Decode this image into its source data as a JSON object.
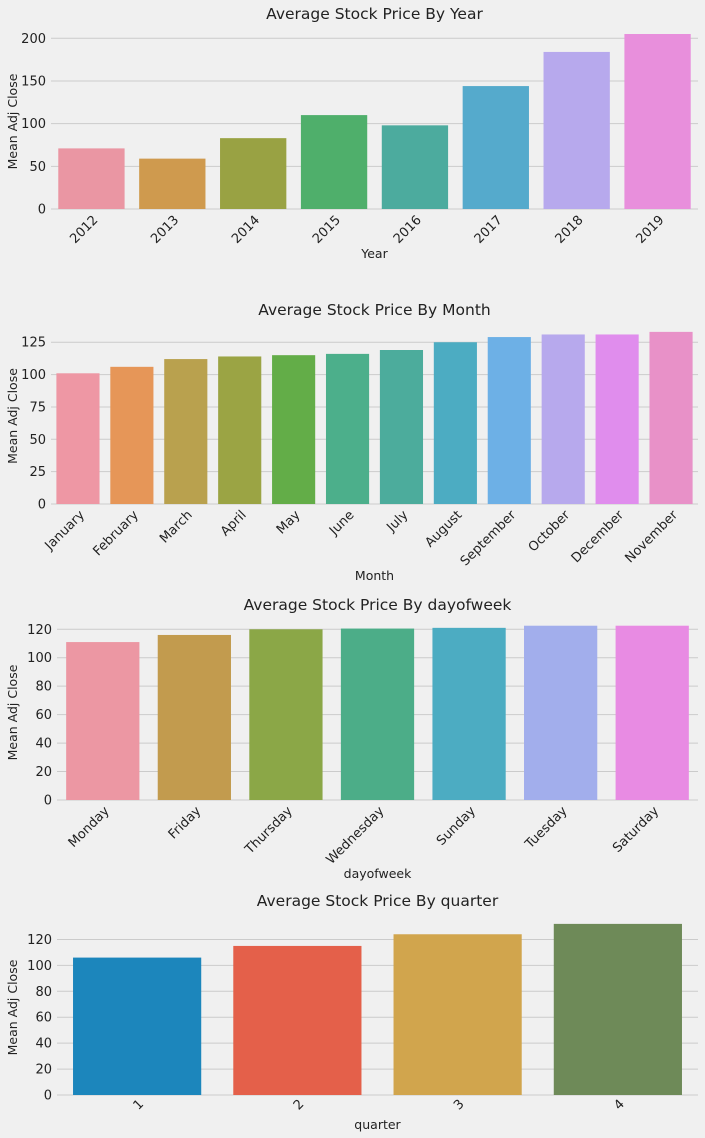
{
  "chart_data": [
    {
      "type": "bar",
      "title": "Average Stock Price By Year",
      "xlabel": "Year",
      "ylabel": "Mean Adj Close",
      "categories": [
        "2012",
        "2013",
        "2014",
        "2015",
        "2016",
        "2017",
        "2018",
        "2019"
      ],
      "values": [
        71,
        59,
        83,
        110,
        98,
        144,
        184,
        205
      ],
      "ylim": [
        0,
        205
      ],
      "yticks": [
        "0",
        "50",
        "100",
        "150",
        "200"
      ],
      "grid": true,
      "colors": [
        "#ea96a3",
        "#cf9a4e",
        "#99a243",
        "#4faf6b",
        "#4cab9e",
        "#55aacc",
        "#b7a9ed",
        "#e88fdc"
      ]
    },
    {
      "type": "bar",
      "title": "Average Stock Price By Month",
      "xlabel": "Month",
      "ylabel": "Mean Adj Close",
      "categories": [
        "January",
        "February",
        "March",
        "April",
        "May",
        "June",
        "July",
        "August",
        "September",
        "October",
        "December",
        "November"
      ],
      "values": [
        101,
        106,
        112,
        114,
        115,
        116,
        119,
        125,
        129,
        131,
        131,
        133
      ],
      "ylim": [
        0,
        136
      ],
      "yticks": [
        "0",
        "25",
        "50",
        "75",
        "100",
        "125"
      ],
      "grid": true,
      "colors": [
        "#ee97a4",
        "#e69658",
        "#b9a14e",
        "#9ba444",
        "#63ad48",
        "#4caf8b",
        "#4cac9c",
        "#4cacc2",
        "#6db0e6",
        "#b7a9ed",
        "#e08ded",
        "#e891c8"
      ]
    },
    {
      "type": "bar",
      "title": "Average Stock Price By dayofweek",
      "xlabel": "dayofweek",
      "ylabel": "Mean Adj Close",
      "categories": [
        "Monday",
        "Friday",
        "Thursday",
        "Wednesday",
        "Sunday",
        "Tuesday",
        "Saturday"
      ],
      "values": [
        111,
        116,
        120,
        120.5,
        121,
        122.5,
        122.5
      ],
      "ylim": [
        0,
        123
      ],
      "yticks": [
        "0",
        "20",
        "40",
        "60",
        "80",
        "100",
        "120"
      ],
      "grid": true,
      "colors": [
        "#ec97a3",
        "#c29b4e",
        "#8ba747",
        "#4cad88",
        "#4cacc2",
        "#a2aeec",
        "#e88be3"
      ]
    },
    {
      "type": "bar",
      "title": "Average Stock Price By quarter",
      "xlabel": "quarter",
      "ylabel": "Mean Adj Close",
      "categories": [
        "1",
        "2",
        "3",
        "4"
      ],
      "values": [
        106,
        115,
        124,
        132
      ],
      "ylim": [
        0,
        135
      ],
      "yticks": [
        "0",
        "20",
        "40",
        "60",
        "80",
        "100",
        "120"
      ],
      "grid": true,
      "colors": [
        "#1c86bc",
        "#e4604a",
        "#d1a54d",
        "#6e8a58"
      ]
    }
  ]
}
